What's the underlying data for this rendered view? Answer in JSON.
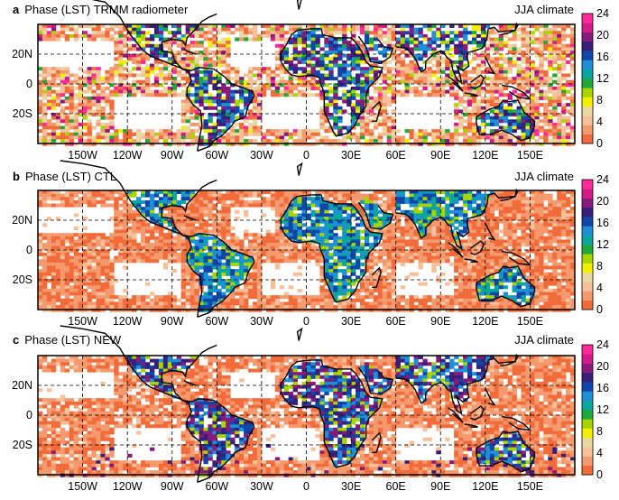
{
  "chart_data": [
    {
      "type": "heatmap",
      "panel_letter": "a",
      "title": "Phase (LST) TRMM radiometer",
      "season_label": "JJA climate",
      "x_tick_labels": [
        "150W",
        "120W",
        "90W",
        "60W",
        "30W",
        "0",
        "30E",
        "60E",
        "90E",
        "120E",
        "150E"
      ],
      "y_tick_labels": [
        "20N",
        "0",
        "20S"
      ],
      "colorbar": {
        "min": 0,
        "max": 24,
        "step": 2,
        "tick_labels": [
          "24",
          "20",
          "16",
          "12",
          "8",
          "4",
          "0"
        ]
      }
    },
    {
      "type": "heatmap",
      "panel_letter": "b",
      "title": "Phase (LST) CTL",
      "season_label": "JJA climate",
      "x_tick_labels": [
        "150W",
        "120W",
        "90W",
        "60W",
        "30W",
        "0",
        "30E",
        "60E",
        "90E",
        "120E",
        "150E"
      ],
      "y_tick_labels": [
        "20N",
        "0",
        "20S"
      ],
      "colorbar": {
        "min": 0,
        "max": 24,
        "step": 2,
        "tick_labels": [
          "24",
          "20",
          "16",
          "12",
          "8",
          "4",
          "0"
        ]
      }
    },
    {
      "type": "heatmap",
      "panel_letter": "c",
      "title": "Phase (LST) NEW",
      "season_label": "JJA climate",
      "x_tick_labels": [
        "150W",
        "120W",
        "90W",
        "60W",
        "30W",
        "0",
        "30E",
        "60E",
        "90E",
        "120E",
        "150E"
      ],
      "y_tick_labels": [
        "20N",
        "0",
        "20S"
      ],
      "colorbar": {
        "min": 0,
        "max": 24,
        "step": 2,
        "tick_labels": [
          "24",
          "20",
          "16",
          "12",
          "8",
          "4",
          "0"
        ]
      }
    }
  ],
  "colors": {
    "scale": [
      "#f26b3a",
      "#f59a6e",
      "#f5c09a",
      "#e8d9a0",
      "#f3ef00",
      "#a8d400",
      "#1fa83a",
      "#0aa6a0",
      "#1f8fd8",
      "#1046a8",
      "#36207a",
      "#8a1a7a",
      "#d41b8a",
      "#ff2a9a"
    ]
  }
}
